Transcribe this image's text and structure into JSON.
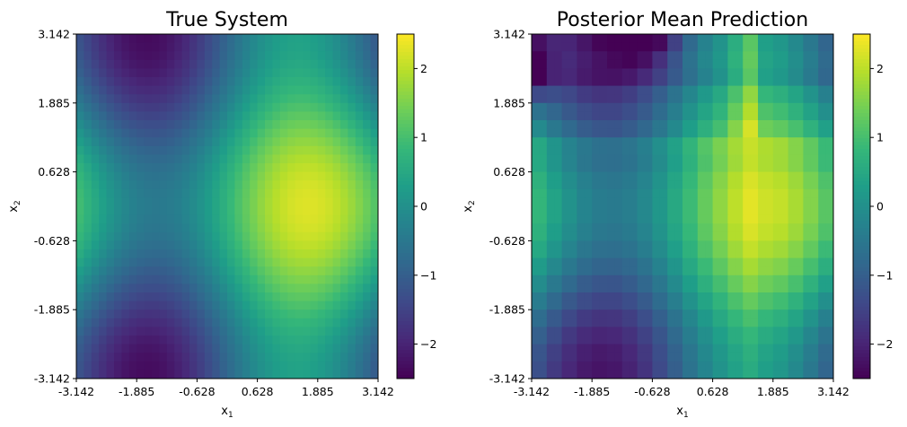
{
  "chart_data": [
    {
      "type": "heatmap",
      "title": "True System",
      "xlabel": "x1",
      "ylabel": "x2",
      "xlim": [
        -3.142,
        3.142
      ],
      "ylim": [
        -3.142,
        3.142
      ],
      "xticks": [
        "-3.142",
        "-1.885",
        "-0.628",
        "0.628",
        "1.885",
        "3.142"
      ],
      "yticks": [
        "3.142",
        "1.885",
        "0.628",
        "-0.628",
        "-1.885",
        "-3.142"
      ],
      "colorbar": {
        "range": [
          -2.5,
          2.5
        ],
        "colormap": "viridis",
        "ticks": [
          "2",
          "1",
          "0",
          "−1",
          "−2"
        ],
        "tick_values": [
          2,
          1,
          0,
          -1,
          -2
        ]
      },
      "grid_size": 40,
      "features": {
        "max": {
          "x1": 1.6,
          "x2": -0.1,
          "value": 2.2
        },
        "min_top": {
          "x1": -1.5,
          "x2": 3.0,
          "value": -2.1
        },
        "min_bottom": {
          "x1": -1.5,
          "x2": -3.0,
          "value": -2.2
        }
      }
    },
    {
      "type": "heatmap",
      "title": "Posterior Mean Prediction",
      "xlabel": "x1",
      "ylabel": "x2",
      "xlim": [
        -3.142,
        3.142
      ],
      "ylim": [
        -3.142,
        3.142
      ],
      "xticks": [
        "-3.142",
        "-1.885",
        "-0.628",
        "0.628",
        "1.885",
        "3.142"
      ],
      "yticks": [
        "3.142",
        "1.885",
        "0.628",
        "-0.628",
        "-1.885",
        "-3.142"
      ],
      "colorbar": {
        "range": [
          -2.5,
          2.5
        ],
        "colormap": "viridis",
        "ticks": [
          "2",
          "1",
          "0",
          "−1",
          "−2"
        ],
        "tick_values": [
          2,
          1,
          0,
          -1,
          -2
        ]
      },
      "grid_size": 40,
      "features": {
        "max": {
          "x1": 1.6,
          "x2": -0.1,
          "value": 2.2
        },
        "min_top": {
          "x1": -0.8,
          "x2": 3.0,
          "value": -2.4
        },
        "min_bottom": {
          "x1": -1.5,
          "x2": -3.0,
          "value": -1.9
        },
        "bright_column_x1": 1.3
      }
    }
  ]
}
